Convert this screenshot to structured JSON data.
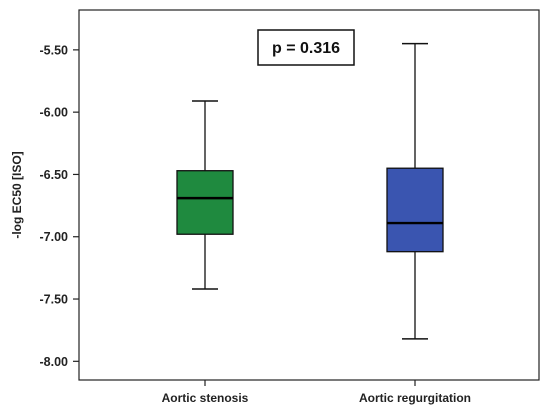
{
  "chart_data": {
    "type": "box",
    "ylabel": "-log EC50 [ISO]",
    "ylim": [
      -8.15,
      -5.18
    ],
    "yticks": [
      -8.0,
      -7.5,
      -7.0,
      -6.5,
      -6.0,
      -5.5
    ],
    "ytick_labels": [
      "-8.00",
      "-7.50",
      "-7.00",
      "-6.50",
      "-6.00",
      "-5.50"
    ],
    "categories": [
      "Aortic stenosis",
      "Aortic regurgitation"
    ],
    "boxes": [
      {
        "category": "Aortic stenosis",
        "min": -7.42,
        "q1": -6.98,
        "median": -6.69,
        "q3": -6.47,
        "max": -5.91,
        "color": "#1f8a3f"
      },
      {
        "category": "Aortic regurgitation",
        "min": -7.82,
        "q1": -7.12,
        "median": -6.89,
        "q3": -6.45,
        "max": -5.45,
        "color": "#3a55b0"
      }
    ],
    "annotations": [
      {
        "text": "p = 0.316"
      }
    ],
    "grid": false,
    "legend": "none"
  }
}
